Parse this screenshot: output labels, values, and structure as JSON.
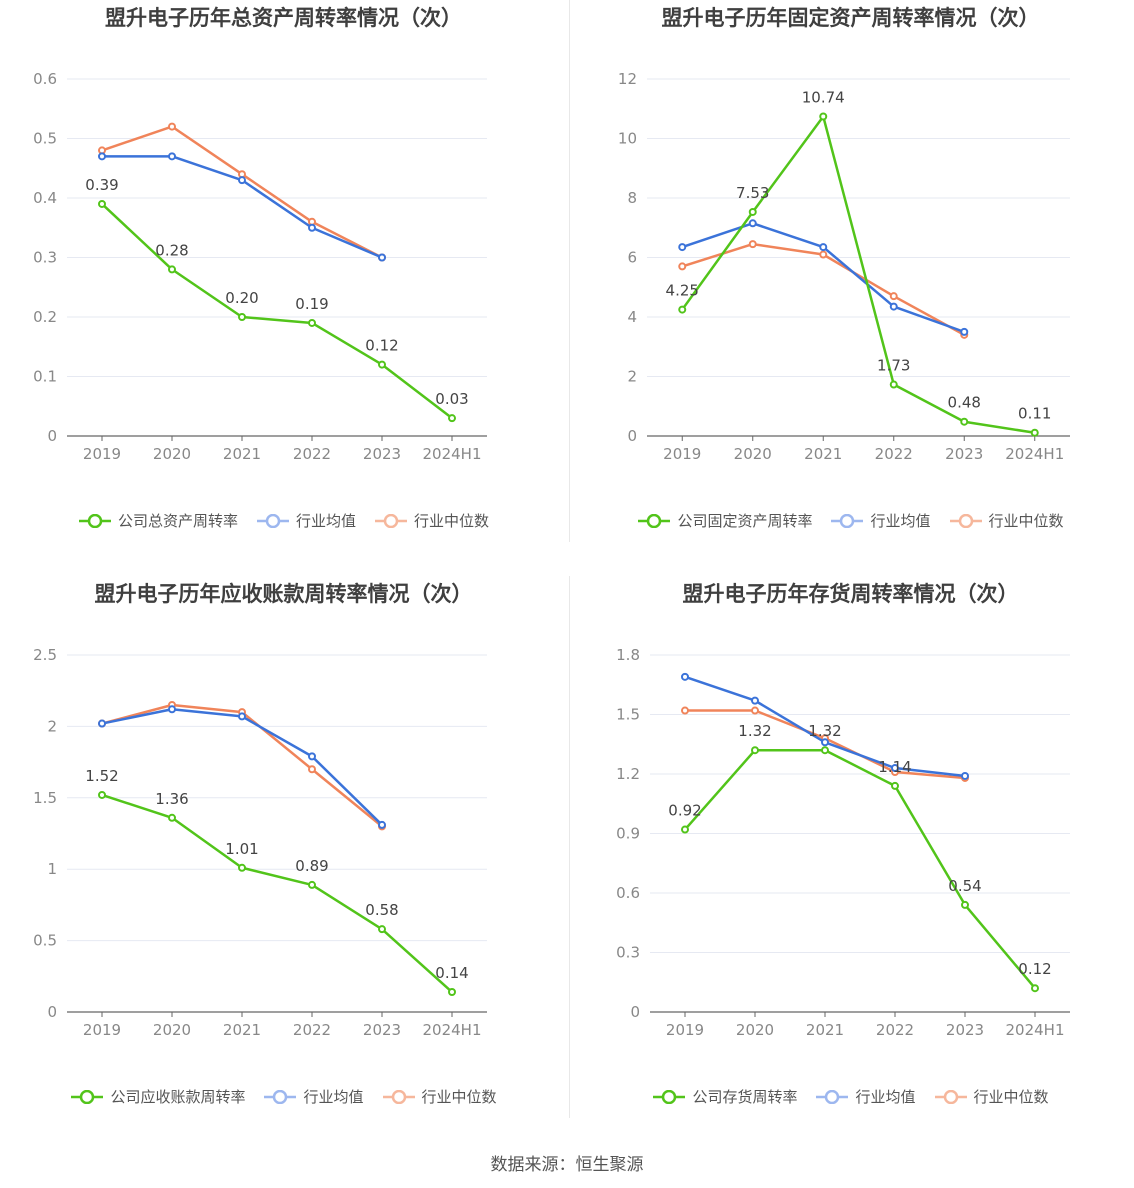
{
  "source_label": "数据来源：恒生聚源",
  "colors": {
    "company": "#52c41a",
    "industry_avg": "#3b73d9",
    "industry_median": "#f0845a",
    "grid": "#e6e9f2",
    "axis": "#666666",
    "tick_text": "#888888"
  },
  "chart_data": [
    {
      "type": "line",
      "title": "盟升电子历年总资产周转率情况（次）",
      "categories": [
        "2019",
        "2020",
        "2021",
        "2022",
        "2023",
        "2024H1"
      ],
      "ylim": [
        0,
        0.6
      ],
      "yticks": [
        "0",
        "0.1",
        "0.2",
        "0.3",
        "0.4",
        "0.5",
        "0.6"
      ],
      "ytick_values": [
        0,
        0.1,
        0.2,
        0.3,
        0.4,
        0.5,
        0.6
      ],
      "grid": true,
      "legend_position": "bottom",
      "series": [
        {
          "name": "公司总资产周转率",
          "key": "company",
          "values": [
            0.39,
            0.28,
            0.2,
            0.19,
            0.12,
            0.03
          ],
          "labels": [
            "0.39",
            "0.28",
            "0.20",
            "0.19",
            "0.12",
            "0.03"
          ]
        },
        {
          "name": "行业均值",
          "key": "industry_avg",
          "values": [
            0.47,
            0.47,
            0.43,
            0.35,
            0.3,
            null
          ]
        },
        {
          "name": "行业中位数",
          "key": "industry_median",
          "values": [
            0.48,
            0.52,
            0.44,
            0.36,
            0.3,
            null
          ]
        }
      ]
    },
    {
      "type": "line",
      "title": "盟升电子历年固定资产周转率情况（次）",
      "categories": [
        "2019",
        "2020",
        "2021",
        "2022",
        "2023",
        "2024H1"
      ],
      "ylim": [
        0,
        12
      ],
      "yticks": [
        "0",
        "2",
        "4",
        "6",
        "8",
        "10",
        "12"
      ],
      "ytick_values": [
        0,
        2,
        4,
        6,
        8,
        10,
        12
      ],
      "grid": true,
      "legend_position": "bottom",
      "series": [
        {
          "name": "公司固定资产周转率",
          "key": "company",
          "values": [
            4.25,
            7.53,
            10.74,
            1.73,
            0.48,
            0.11
          ],
          "labels": [
            "4.25",
            "7.53",
            "10.74",
            "1.73",
            "0.48",
            "0.11"
          ]
        },
        {
          "name": "行业均值",
          "key": "industry_avg",
          "values": [
            6.35,
            7.15,
            6.35,
            4.35,
            3.5,
            null
          ]
        },
        {
          "name": "行业中位数",
          "key": "industry_median",
          "values": [
            5.7,
            6.45,
            6.1,
            4.7,
            3.4,
            null
          ]
        }
      ]
    },
    {
      "type": "line",
      "title": "盟升电子历年应收账款周转率情况（次）",
      "categories": [
        "2019",
        "2020",
        "2021",
        "2022",
        "2023",
        "2024H1"
      ],
      "ylim": [
        0,
        2.5
      ],
      "yticks": [
        "0",
        "0.5",
        "1",
        "1.5",
        "2",
        "2.5"
      ],
      "ytick_values": [
        0,
        0.5,
        1,
        1.5,
        2,
        2.5
      ],
      "grid": true,
      "legend_position": "bottom",
      "series": [
        {
          "name": "公司应收账款周转率",
          "key": "company",
          "values": [
            1.52,
            1.36,
            1.01,
            0.89,
            0.58,
            0.14
          ],
          "labels": [
            "1.52",
            "1.36",
            "1.01",
            "0.89",
            "0.58",
            "0.14"
          ]
        },
        {
          "name": "行业均值",
          "key": "industry_avg",
          "values": [
            2.02,
            2.12,
            2.07,
            1.79,
            1.31,
            null
          ]
        },
        {
          "name": "行业中位数",
          "key": "industry_median",
          "values": [
            2.02,
            2.15,
            2.1,
            1.7,
            1.3,
            null
          ]
        }
      ]
    },
    {
      "type": "line",
      "title": "盟升电子历年存货周转率情况（次）",
      "categories": [
        "2019",
        "2020",
        "2021",
        "2022",
        "2023",
        "2024H1"
      ],
      "ylim": [
        0,
        1.8
      ],
      "yticks": [
        "0",
        "0.3",
        "0.6",
        "0.9",
        "1.2",
        "1.5",
        "1.8"
      ],
      "ytick_values": [
        0,
        0.3,
        0.6,
        0.9,
        1.2,
        1.5,
        1.8
      ],
      "grid": true,
      "legend_position": "bottom",
      "series": [
        {
          "name": "公司存货周转率",
          "key": "company",
          "values": [
            0.92,
            1.32,
            1.32,
            1.14,
            0.54,
            0.12
          ],
          "labels": [
            "0.92",
            "1.32",
            "1.32",
            "1.14",
            "0.54",
            "0.12"
          ]
        },
        {
          "name": "行业均值",
          "key": "industry_avg",
          "values": [
            1.69,
            1.57,
            1.36,
            1.23,
            1.19,
            null
          ]
        },
        {
          "name": "行业中位数",
          "key": "industry_median",
          "values": [
            1.52,
            1.52,
            1.38,
            1.21,
            1.18,
            null
          ]
        }
      ]
    }
  ]
}
